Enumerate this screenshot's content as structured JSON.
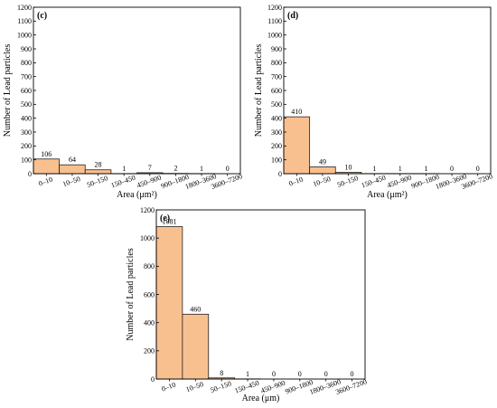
{
  "figure": {
    "bar_color": "#f9c08f",
    "bar_edge_color": "#222222"
  },
  "chart_data": [
    {
      "type": "bar",
      "panel_label": "(c)",
      "categories": [
        "0–10",
        "10–50",
        "50–150",
        "150–450",
        "450–900",
        "900–1800",
        "1800–3600",
        "3600–7200"
      ],
      "values": [
        106,
        64,
        28,
        1,
        7,
        2,
        1,
        0
      ],
      "data_labels": [
        "106",
        "64",
        "28",
        "1",
        "7",
        "2",
        "1",
        "0"
      ],
      "xlabel": "Area (μm²)",
      "ylabel": "Number of Lead particles",
      "ylim": [
        0,
        1200
      ],
      "yticks": [
        0,
        100,
        200,
        300,
        400,
        500,
        600,
        700,
        800,
        900,
        1000,
        1100,
        1200
      ],
      "grid": false,
      "legend": "none"
    },
    {
      "type": "bar",
      "panel_label": "(d)",
      "categories": [
        "0–10",
        "10–50",
        "50–150",
        "150–450",
        "450–900",
        "900–1800",
        "1800–3600",
        "3600–7200"
      ],
      "values": [
        410,
        49,
        10,
        1,
        1,
        1,
        0,
        0
      ],
      "data_labels": [
        "410",
        "49",
        "10",
        "1",
        "1",
        "1",
        "0",
        "0"
      ],
      "xlabel": "Area (μm²)",
      "ylabel": "Number of Lead particles",
      "ylim": [
        0,
        1200
      ],
      "yticks": [
        0,
        100,
        200,
        300,
        400,
        500,
        600,
        700,
        800,
        900,
        1000,
        1100,
        1200
      ],
      "grid": false,
      "legend": "none"
    },
    {
      "type": "bar",
      "panel_label": "(e)",
      "categories": [
        "0–10",
        "10–50",
        "50–150",
        "150–450",
        "450–900",
        "900–1800",
        "1800–3600",
        "3600–7200"
      ],
      "values": [
        1081,
        460,
        8,
        1,
        0,
        0,
        0,
        0
      ],
      "data_labels": [
        "1081",
        "460",
        "8",
        "1",
        "0",
        "0",
        "0",
        "0"
      ],
      "xlabel": "Area (μm)",
      "ylabel": "Number of Lead particles",
      "ylim": [
        0,
        1200
      ],
      "yticks": [
        0,
        200,
        400,
        600,
        800,
        1000,
        1200
      ],
      "grid": false,
      "legend": "none"
    }
  ]
}
